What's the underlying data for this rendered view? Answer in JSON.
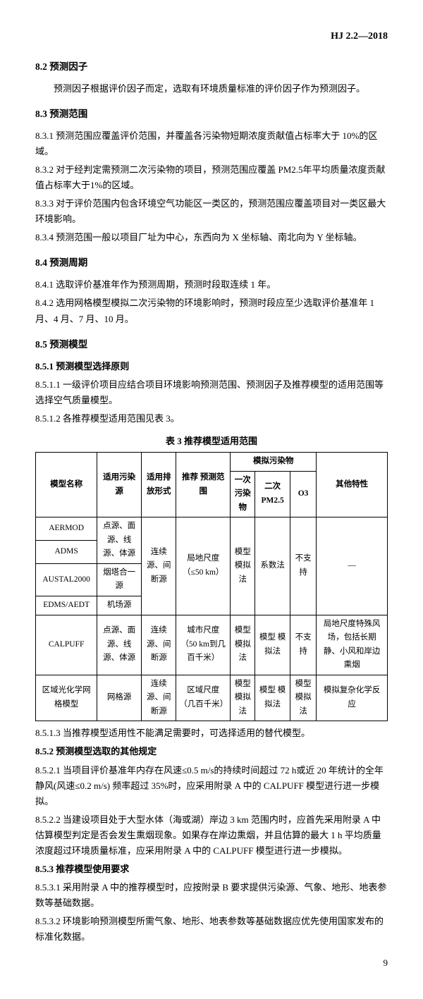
{
  "header": "HJ 2.2—2018",
  "s82t": "8.2  预测因子",
  "s82p": "预测因子根据评价因子而定，选取有环境质量标准的评价因子作为预测因子。",
  "s83t": "8.3  预测范围",
  "s831": "8.3.1  预测范围应覆盖评价范围，并覆盖各污染物短期浓度贡献值占标率大于 10%的区域。",
  "s832": "8.3.2  对于经判定需预测二次污染物的项目，预测范围应覆盖 PM2.5年平均质量浓度贡献值占标率大于1%的区域。",
  "s833": "8.3.3  对于评价范围内包含环境空气功能区一类区的，预测范围应覆盖项目对一类区最大环境影响。",
  "s834": "8.3.4  预测范围一般以项目厂址为中心，东西向为 X 坐标轴、南北向为 Y 坐标轴。",
  "s84t": "8.4  预测周期",
  "s841": "8.4.1  选取评价基准年作为预测周期，预测时段取连续 1 年。",
  "s842": "8.4.2  选用网格模型模拟二次污染物的环境影响时，预测时段应至少选取评价基准年 1 月、4 月、7 月、10 月。",
  "s85t": "8.5  预测模型",
  "s851t": "8.5.1  预测模型选择原则",
  "s8511": "8.5.1.1  一级评价项目应结合项目环境影响预测范围、预测因子及推荐模型的适用范围等选择空气质量模型。",
  "s8512": "8.5.1.2  各推荐模型适用范围见表 3。",
  "tblTitle": "表 3  推荐模型适用范围",
  "th": {
    "c0": "模型名称",
    "c1": "适用污染源",
    "c2": "适用排放形式",
    "c3": "推荐\n预测范围",
    "c4": "模拟污染物",
    "c4a": "一次污染物",
    "c4b": "二次 PM2.5",
    "c4c": "O3",
    "c5": "其他特性"
  },
  "r": {
    "aermod": "AERMOD",
    "adms": "ADMS",
    "austal": "AUSTAL2000",
    "edms": "EDMS/AEDT",
    "calpuff": "CALPUFF",
    "grid": "区域光化学网格模型",
    "src1": "点源、面源、线源、体源",
    "src2": "烟塔合一源",
    "src3": "机场源",
    "src4": "点源、面源、线源、体源",
    "src5": "网格源",
    "emit1": "连续源、间断源",
    "emit2": "连续源、间断源",
    "emit3": "连续源、间断源",
    "rng1": "局地尺度\n（≤50 km）",
    "rng2": "城市尺度\n（50 km到几百千米）",
    "rng3": "区域尺度\n（几百千米）",
    "p1": "模型\n模拟法",
    "p2": "系数法",
    "p3": "不支持",
    "p4": "模型\n模拟法",
    "p5": "模型\n模拟法",
    "p6": "不支持",
    "p7": "模型\n模拟法",
    "p8": "模型\n模拟法",
    "p9": "模型\n模拟法",
    "oth1": "—",
    "oth2": "局地尺度特殊风场，包括长期静、小风和岸边熏烟",
    "oth3": "模拟复杂化学反应"
  },
  "s8513": "8.5.1.3  当推荐模型适用性不能满足需要时，可选择适用的替代模型。",
  "s852t": "8.5.2  预测模型选取的其他规定",
  "s8521": "8.5.2.1  当项目评价基准年内存在风速≤0.5 m/s的持续时间超过 72 h或近 20 年统计的全年静风(风速≤0.2 m/s) 频率超过 35%时，应采用附录 A 中的 CALPUFF 模型进行进一步模拟。",
  "s8522": "8.5.2.2  当建设项目处于大型水体（海或湖）岸边 3 km 范围内时，应首先采用附录 A 中估算模型判定是否会发生熏烟现象。如果存在岸边熏烟，并且估算的最大 1 h 平均质量浓度超过环境质量标准，应采用附录 A 中的 CALPUFF 模型进行进一步模拟。",
  "s853t": "8.5.3  推荐模型使用要求",
  "s8531": "8.5.3.1  采用附录 A 中的推荐模型时，应按附录 B 要求提供污染源、气象、地形、地表参数等基础数据。",
  "s8532": "8.5.3.2  环境影响预测模型所需气象、地形、地表参数等基础数据应优先使用国家发布的标准化数据。",
  "pgnum": "9"
}
